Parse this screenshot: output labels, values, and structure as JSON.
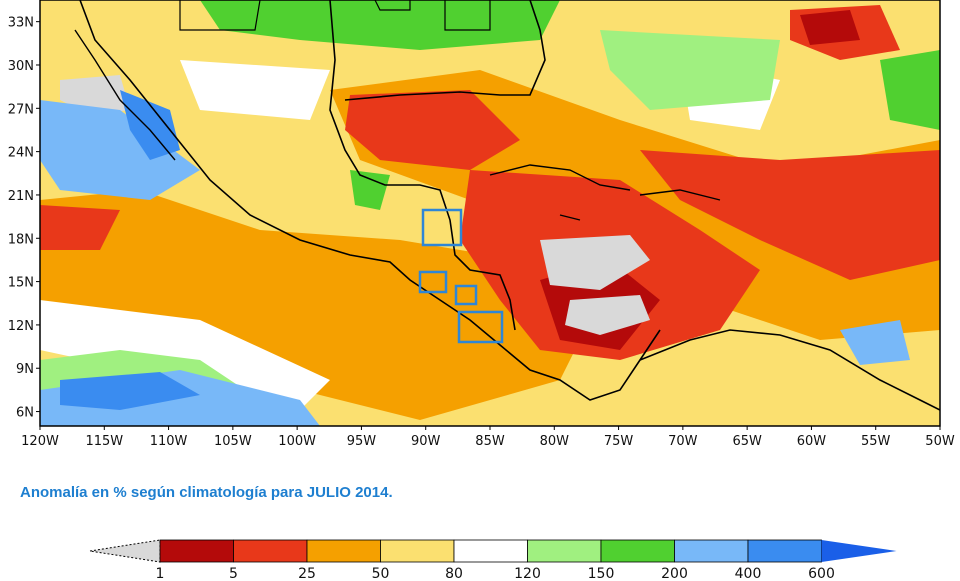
{
  "map": {
    "y_ticks": [
      "33N",
      "30N",
      "27N",
      "24N",
      "21N",
      "18N",
      "15N",
      "12N",
      "9N",
      "6N"
    ],
    "x_ticks": [
      "120W",
      "115W",
      "110W",
      "105W",
      "100W",
      "95W",
      "90W",
      "85W",
      "80W",
      "75W",
      "70W",
      "65W",
      "60W",
      "55W",
      "50W"
    ],
    "extent": {
      "lon_min": -120,
      "lon_max": -50,
      "lat_min": 5,
      "lat_max": 34.5
    },
    "highlight_boxes": 4,
    "highlight_color": "#2e86d6"
  },
  "caption": "Anomalía en % según climatología para JULIO 2014.",
  "colorbar": {
    "labels": [
      "1",
      "5",
      "25",
      "50",
      "80",
      "120",
      "150",
      "200",
      "400",
      "600"
    ],
    "colors": {
      "below_1": "#d9d9d9",
      "1_5": "#b40a0a",
      "5_25": "#e8381a",
      "25_50": "#f5a000",
      "50_80": "#fbe070",
      "80_120": "#ffffff",
      "120_150": "#a0f080",
      "150_200": "#50d030",
      "200_400": "#78b8f8",
      "400_600": "#3a8cf0",
      "above_600": "#1a5fe8"
    }
  }
}
